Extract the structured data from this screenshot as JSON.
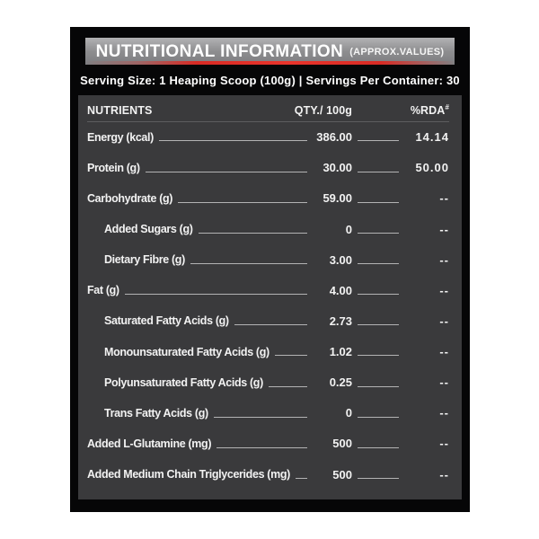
{
  "header": {
    "title": "NUTRITIONAL INFORMATION",
    "subtitle": "(APPROX.VALUES)"
  },
  "serving_line": "Serving Size: 1 Heaping Scoop (100g) | Servings Per Container: 30",
  "columns": {
    "nutrients": "NUTRIENTS",
    "qty": "QTY./ 100g",
    "rda": "%RDA",
    "rda_note_symbol": "#"
  },
  "rows": [
    {
      "label": "Energy (kcal)",
      "qty": "386.00",
      "rda": "14.14",
      "indent": false
    },
    {
      "label": "Protein (g)",
      "qty": "30.00",
      "rda": "50.00",
      "indent": false
    },
    {
      "label": "Carbohydrate (g)",
      "qty": "59.00",
      "rda": "--",
      "indent": false
    },
    {
      "label": "Added Sugars (g)",
      "qty": "0",
      "rda": "--",
      "indent": true
    },
    {
      "label": "Dietary Fibre (g)",
      "qty": "3.00",
      "rda": "--",
      "indent": true
    },
    {
      "label": "Fat (g)",
      "qty": "4.00",
      "rda": "--",
      "indent": false
    },
    {
      "label": "Saturated Fatty Acids (g)",
      "qty": "2.73",
      "rda": "--",
      "indent": true
    },
    {
      "label": "Monounsaturated Fatty Acids (g)",
      "qty": "1.02",
      "rda": "--",
      "indent": true
    },
    {
      "label": "Polyunsaturated Fatty Acids (g)",
      "qty": "0.25",
      "rda": "--",
      "indent": true
    },
    {
      "label": "Trans Fatty Acids (g)",
      "qty": "0",
      "rda": "--",
      "indent": true
    },
    {
      "label": "Added L-Glutamine (mg)",
      "qty": "500",
      "rda": "--",
      "indent": false
    },
    {
      "label": "Added Medium Chain Triglycerides (mg)",
      "qty": "500",
      "rda": "--",
      "indent": false
    }
  ],
  "colors": {
    "panel_gray": "#3a3a3c",
    "frame_black": "#060607",
    "title_bar_gray": "#8b8b8d",
    "accent_red": "#e0302a",
    "text": "#f2f2f2",
    "leader_line": "#c9c9c9"
  }
}
